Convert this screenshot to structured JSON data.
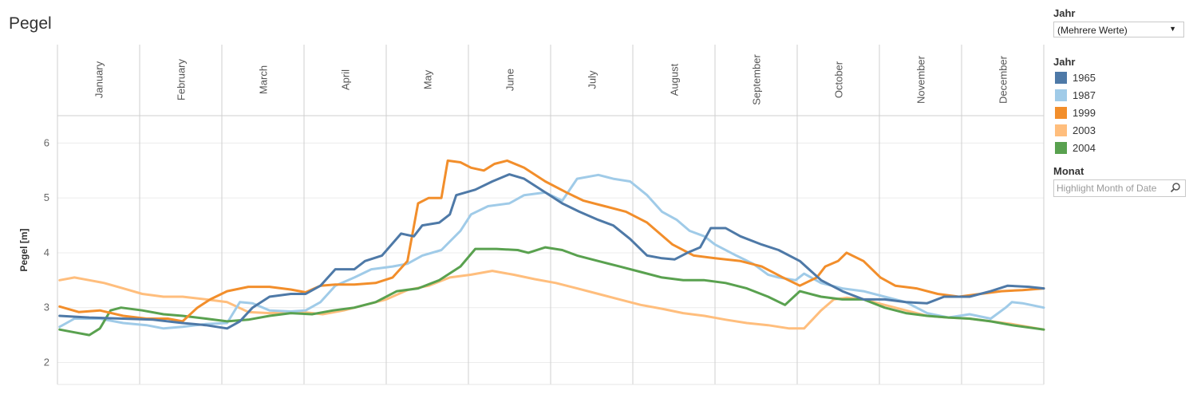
{
  "title": "Pegel",
  "filter": {
    "label": "Jahr",
    "value": "(Mehrere Werte)"
  },
  "legend": {
    "title": "Jahr",
    "items": [
      {
        "label": "1965",
        "color": "#4e79a7"
      },
      {
        "label": "1987",
        "color": "#a0cbe8"
      },
      {
        "label": "1999",
        "color": "#f28e2b"
      },
      {
        "label": "2003",
        "color": "#ffbe7d"
      },
      {
        "label": "2004",
        "color": "#59a14f"
      }
    ]
  },
  "highlight": {
    "label": "Monat",
    "placeholder": "Highlight Month of Date",
    "icon": "search-icon"
  },
  "chart_data": {
    "type": "line",
    "ylabel": "Pegel [m]",
    "ylim": [
      1.6,
      6.5
    ],
    "yticks": [
      2,
      3,
      4,
      5,
      6
    ],
    "months": [
      "January",
      "February",
      "March",
      "April",
      "May",
      "June",
      "July",
      "August",
      "September",
      "October",
      "November",
      "December"
    ],
    "x_unit": "day of year",
    "grid": true,
    "series": [
      {
        "name": "1965",
        "color": "#4e79a7",
        "points": [
          [
            1,
            2.85
          ],
          [
            15,
            2.82
          ],
          [
            31,
            2.8
          ],
          [
            45,
            2.78
          ],
          [
            59,
            2.72
          ],
          [
            70,
            2.68
          ],
          [
            80,
            2.62
          ],
          [
            86,
            2.75
          ],
          [
            92,
            3.0
          ],
          [
            100,
            3.2
          ],
          [
            110,
            3.25
          ],
          [
            117,
            3.25
          ],
          [
            124,
            3.4
          ],
          [
            131,
            3.7
          ],
          [
            140,
            3.7
          ],
          [
            145,
            3.85
          ],
          [
            153,
            3.95
          ],
          [
            162,
            4.35
          ],
          [
            168,
            4.3
          ],
          [
            172,
            4.5
          ],
          [
            180,
            4.55
          ],
          [
            185,
            4.7
          ],
          [
            188,
            5.05
          ],
          [
            197,
            5.15
          ],
          [
            205,
            5.3
          ],
          [
            213,
            5.43
          ],
          [
            220,
            5.35
          ],
          [
            230,
            5.1
          ],
          [
            238,
            4.9
          ],
          [
            246,
            4.75
          ],
          [
            255,
            4.6
          ],
          [
            262,
            4.5
          ],
          [
            270,
            4.25
          ],
          [
            278,
            3.95
          ],
          [
            285,
            3.9
          ],
          [
            291,
            3.88
          ],
          [
            297,
            4.0
          ],
          [
            303,
            4.1
          ],
          [
            308,
            4.45
          ],
          [
            315,
            4.45
          ],
          [
            322,
            4.3
          ],
          [
            332,
            4.15
          ],
          [
            340,
            4.05
          ],
          [
            350,
            3.85
          ],
          [
            360,
            3.5
          ],
          [
            370,
            3.3
          ],
          [
            380,
            3.15
          ],
          [
            390,
            3.15
          ],
          [
            400,
            3.1
          ],
          [
            410,
            3.08
          ],
          [
            418,
            3.2
          ],
          [
            430,
            3.2
          ],
          [
            440,
            3.3
          ],
          [
            448,
            3.4
          ],
          [
            458,
            3.38
          ],
          [
            465,
            3.35
          ]
        ]
      },
      {
        "name": "1987",
        "color": "#a0cbe8",
        "points": [
          [
            1,
            2.65
          ],
          [
            8,
            2.8
          ],
          [
            20,
            2.8
          ],
          [
            31,
            2.72
          ],
          [
            42,
            2.68
          ],
          [
            50,
            2.62
          ],
          [
            59,
            2.65
          ],
          [
            70,
            2.7
          ],
          [
            80,
            2.72
          ],
          [
            86,
            3.1
          ],
          [
            92,
            3.08
          ],
          [
            100,
            2.95
          ],
          [
            110,
            2.93
          ],
          [
            117,
            2.95
          ],
          [
            124,
            3.1
          ],
          [
            131,
            3.4
          ],
          [
            140,
            3.55
          ],
          [
            148,
            3.7
          ],
          [
            158,
            3.75
          ],
          [
            165,
            3.8
          ],
          [
            172,
            3.95
          ],
          [
            181,
            4.05
          ],
          [
            190,
            4.4
          ],
          [
            195,
            4.7
          ],
          [
            203,
            4.85
          ],
          [
            213,
            4.9
          ],
          [
            220,
            5.05
          ],
          [
            230,
            5.1
          ],
          [
            238,
            4.95
          ],
          [
            245,
            5.35
          ],
          [
            255,
            5.42
          ],
          [
            262,
            5.35
          ],
          [
            270,
            5.3
          ],
          [
            278,
            5.05
          ],
          [
            285,
            4.75
          ],
          [
            292,
            4.6
          ],
          [
            298,
            4.4
          ],
          [
            305,
            4.3
          ],
          [
            310,
            4.15
          ],
          [
            320,
            3.95
          ],
          [
            328,
            3.8
          ],
          [
            335,
            3.6
          ],
          [
            340,
            3.55
          ],
          [
            348,
            3.5
          ],
          [
            352,
            3.62
          ],
          [
            360,
            3.45
          ],
          [
            370,
            3.35
          ],
          [
            380,
            3.3
          ],
          [
            390,
            3.2
          ],
          [
            400,
            3.1
          ],
          [
            410,
            2.9
          ],
          [
            420,
            2.82
          ],
          [
            430,
            2.88
          ],
          [
            440,
            2.8
          ],
          [
            447,
            3.0
          ],
          [
            450,
            3.1
          ],
          [
            455,
            3.08
          ],
          [
            465,
            3.0
          ]
        ]
      },
      {
        "name": "1999",
        "color": "#f28e2b",
        "points": [
          [
            1,
            3.02
          ],
          [
            10,
            2.92
          ],
          [
            20,
            2.95
          ],
          [
            31,
            2.85
          ],
          [
            42,
            2.8
          ],
          [
            52,
            2.8
          ],
          [
            59,
            2.75
          ],
          [
            66,
            3.0
          ],
          [
            72,
            3.15
          ],
          [
            80,
            3.3
          ],
          [
            90,
            3.38
          ],
          [
            100,
            3.38
          ],
          [
            110,
            3.33
          ],
          [
            117,
            3.28
          ],
          [
            124,
            3.4
          ],
          [
            131,
            3.42
          ],
          [
            140,
            3.42
          ],
          [
            150,
            3.45
          ],
          [
            158,
            3.55
          ],
          [
            165,
            3.85
          ],
          [
            170,
            4.9
          ],
          [
            175,
            5.0
          ],
          [
            181,
            5.0
          ],
          [
            184,
            5.68
          ],
          [
            190,
            5.65
          ],
          [
            195,
            5.55
          ],
          [
            201,
            5.5
          ],
          [
            206,
            5.62
          ],
          [
            212,
            5.68
          ],
          [
            220,
            5.55
          ],
          [
            230,
            5.3
          ],
          [
            240,
            5.1
          ],
          [
            248,
            4.95
          ],
          [
            258,
            4.85
          ],
          [
            268,
            4.75
          ],
          [
            278,
            4.55
          ],
          [
            290,
            4.15
          ],
          [
            300,
            3.95
          ],
          [
            310,
            3.9
          ],
          [
            322,
            3.85
          ],
          [
            332,
            3.75
          ],
          [
            342,
            3.55
          ],
          [
            350,
            3.4
          ],
          [
            358,
            3.55
          ],
          [
            362,
            3.75
          ],
          [
            368,
            3.85
          ],
          [
            372,
            4.0
          ],
          [
            380,
            3.85
          ],
          [
            388,
            3.55
          ],
          [
            395,
            3.4
          ],
          [
            405,
            3.35
          ],
          [
            415,
            3.25
          ],
          [
            425,
            3.2
          ],
          [
            435,
            3.25
          ],
          [
            445,
            3.3
          ],
          [
            455,
            3.32
          ],
          [
            465,
            3.35
          ]
        ]
      },
      {
        "name": "2003",
        "color": "#ffbe7d",
        "points": [
          [
            1,
            3.5
          ],
          [
            8,
            3.55
          ],
          [
            15,
            3.5
          ],
          [
            22,
            3.45
          ],
          [
            31,
            3.35
          ],
          [
            40,
            3.25
          ],
          [
            50,
            3.2
          ],
          [
            59,
            3.2
          ],
          [
            70,
            3.15
          ],
          [
            80,
            3.1
          ],
          [
            90,
            2.92
          ],
          [
            100,
            2.9
          ],
          [
            115,
            2.92
          ],
          [
            125,
            2.88
          ],
          [
            135,
            2.95
          ],
          [
            145,
            3.05
          ],
          [
            155,
            3.15
          ],
          [
            165,
            3.32
          ],
          [
            175,
            3.4
          ],
          [
            185,
            3.55
          ],
          [
            195,
            3.6
          ],
          [
            205,
            3.67
          ],
          [
            215,
            3.6
          ],
          [
            225,
            3.52
          ],
          [
            235,
            3.45
          ],
          [
            245,
            3.35
          ],
          [
            255,
            3.25
          ],
          [
            265,
            3.15
          ],
          [
            275,
            3.05
          ],
          [
            285,
            2.98
          ],
          [
            295,
            2.9
          ],
          [
            305,
            2.85
          ],
          [
            315,
            2.78
          ],
          [
            325,
            2.72
          ],
          [
            335,
            2.68
          ],
          [
            345,
            2.62
          ],
          [
            352,
            2.62
          ],
          [
            360,
            2.95
          ],
          [
            366,
            3.15
          ],
          [
            372,
            3.18
          ],
          [
            380,
            3.15
          ],
          [
            390,
            3.05
          ],
          [
            400,
            2.95
          ],
          [
            410,
            2.85
          ],
          [
            420,
            2.82
          ],
          [
            430,
            2.8
          ],
          [
            440,
            2.75
          ],
          [
            450,
            2.7
          ],
          [
            465,
            2.6
          ]
        ]
      },
      {
        "name": "2004",
        "color": "#59a14f",
        "points": [
          [
            1,
            2.6
          ],
          [
            8,
            2.55
          ],
          [
            15,
            2.5
          ],
          [
            20,
            2.62
          ],
          [
            25,
            2.95
          ],
          [
            30,
            3.0
          ],
          [
            40,
            2.95
          ],
          [
            50,
            2.88
          ],
          [
            59,
            2.85
          ],
          [
            70,
            2.8
          ],
          [
            80,
            2.75
          ],
          [
            90,
            2.78
          ],
          [
            100,
            2.85
          ],
          [
            110,
            2.9
          ],
          [
            120,
            2.88
          ],
          [
            130,
            2.95
          ],
          [
            140,
            3.0
          ],
          [
            150,
            3.1
          ],
          [
            160,
            3.3
          ],
          [
            170,
            3.35
          ],
          [
            180,
            3.5
          ],
          [
            190,
            3.75
          ],
          [
            197,
            4.07
          ],
          [
            207,
            4.07
          ],
          [
            217,
            4.05
          ],
          [
            222,
            4.0
          ],
          [
            230,
            4.1
          ],
          [
            238,
            4.05
          ],
          [
            245,
            3.95
          ],
          [
            255,
            3.85
          ],
          [
            265,
            3.75
          ],
          [
            275,
            3.65
          ],
          [
            285,
            3.55
          ],
          [
            295,
            3.5
          ],
          [
            305,
            3.5
          ],
          [
            315,
            3.45
          ],
          [
            325,
            3.35
          ],
          [
            335,
            3.2
          ],
          [
            343,
            3.05
          ],
          [
            350,
            3.3
          ],
          [
            360,
            3.2
          ],
          [
            370,
            3.15
          ],
          [
            380,
            3.15
          ],
          [
            390,
            3.0
          ],
          [
            400,
            2.9
          ],
          [
            410,
            2.85
          ],
          [
            420,
            2.82
          ],
          [
            430,
            2.8
          ],
          [
            440,
            2.75
          ],
          [
            450,
            2.68
          ],
          [
            465,
            2.6
          ]
        ]
      }
    ]
  }
}
